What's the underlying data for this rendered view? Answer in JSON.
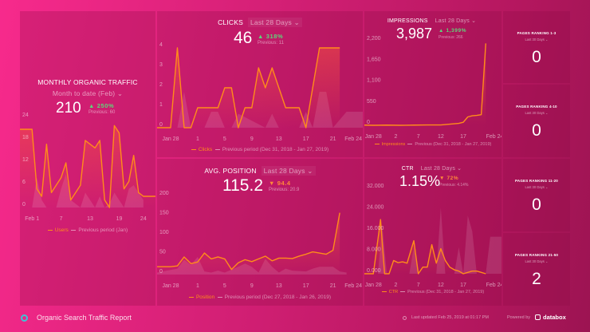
{
  "colors": {
    "accent": "#ff8c1a",
    "up": "#5fd67a",
    "down": "#ff8a3a",
    "logo": "#3fc3d6"
  },
  "traffic": {
    "title": "MONTHLY ORGANIC TRAFFIC",
    "range": "Month to date (Feb) ⌄",
    "value": "210",
    "change": "▲ 250%",
    "previous": "Previous: 60",
    "legend_main": "Users",
    "legend_prev": "Previous period (Jan)"
  },
  "clicks": {
    "title": "CLICKS",
    "range": "Last 28 Days ⌄",
    "value": "46",
    "change": "▲ 318%",
    "previous": "Previous: 11",
    "legend_main": "Clicks",
    "legend_prev": "Previous period (Dec 31, 2018 - Jan 27, 2019)"
  },
  "impressions": {
    "title": "IMPRESSIONS",
    "range": "Last 28 Days ⌄",
    "value": "3,987",
    "change": "▲ 1,399%",
    "previous": "Previous: 266",
    "legend_main": "Impressions",
    "legend_prev": "Previous (Dec 31, 2018 - Jan 27, 2019)"
  },
  "position": {
    "title": "AVG. POSITION",
    "range": "Last 28 Days ⌄",
    "value": "115.2",
    "change": "▼ 94.4",
    "previous": "Previous: 20.9",
    "legend_main": "Position",
    "legend_prev": "Previous period (Dec 27, 2018 - Jan 26, 2019)"
  },
  "ctr": {
    "title": "CTR",
    "range": "Last 28 Days ⌄",
    "value": "1.15%",
    "change": "▼ 72%",
    "previous": "Previous: 4.14%",
    "legend_main": "CTR",
    "legend_prev": "Previous (Dec 31, 2018 - Jan 27, 2019)"
  },
  "tiles": [
    {
      "title": "PAGES RANKING 1-3",
      "range": "Last 30 Days ⌄",
      "value": "0"
    },
    {
      "title": "PAGES RANKING 4-10",
      "range": "Last 30 Days ⌄",
      "value": "0"
    },
    {
      "title": "PAGES RANKING 11-20",
      "range": "Last 30 Days ⌄",
      "value": "0"
    },
    {
      "title": "PAGES RANKING 21-50",
      "range": "Last 30 Days ⌄",
      "value": "2"
    }
  ],
  "footer": {
    "report_title": "Organic Search Traffic Report",
    "last_updated": "Last updated Feb 25, 2019 at 01:17 PM",
    "powered_by": "Powered by",
    "brand": "databox"
  },
  "chart_data": [
    {
      "id": "traffic",
      "type": "line",
      "xlim": [
        -1.5,
        26.5
      ],
      "ylim": [
        0,
        24
      ],
      "yticks": [
        "0",
        "6",
        "12",
        "18",
        "24"
      ],
      "ytick_values": [
        0,
        6,
        12,
        18,
        24
      ],
      "xticks": [
        "Feb 1",
        "7",
        "13",
        "19",
        "24"
      ],
      "xtick_values": [
        1,
        7,
        13,
        19,
        24
      ],
      "series": [
        {
          "name": "Users",
          "x": [
            -1.5,
            0,
            1,
            2,
            3,
            4,
            5,
            6,
            7,
            8,
            9,
            10,
            11,
            12,
            13,
            14,
            15,
            16,
            17,
            18,
            19,
            20,
            21,
            22,
            23,
            24,
            25,
            26.5
          ],
          "values": [
            21,
            21,
            21,
            5,
            3,
            17,
            4,
            6,
            8,
            12,
            2,
            4,
            6,
            18,
            17,
            16,
            18,
            2,
            0,
            22,
            20,
            5,
            7,
            14,
            4,
            3,
            3,
            3
          ]
        },
        {
          "name": "Previous period (Jan)",
          "x": [
            1,
            2,
            3,
            4,
            6,
            7,
            8,
            9,
            11,
            12,
            14,
            15,
            16,
            17,
            18,
            20,
            21,
            22,
            23,
            24
          ],
          "values": [
            0,
            8,
            2,
            0,
            0,
            5,
            9,
            2,
            0,
            4,
            0,
            3,
            0,
            1,
            4,
            0,
            5,
            6,
            4,
            2
          ]
        }
      ]
    },
    {
      "id": "clicks",
      "type": "line",
      "xlim": [
        -2,
        28.4
      ],
      "ylim": [
        0,
        4
      ],
      "yticks": [
        "0",
        "1",
        "2",
        "3",
        "4"
      ],
      "ytick_values": [
        0,
        1,
        2,
        3,
        4
      ],
      "xticks": [
        "Jan 28",
        "1",
        "5",
        "9",
        "13",
        "17",
        "21",
        "Feb 24"
      ],
      "xtick_values": [
        0,
        4,
        8,
        12,
        16,
        20,
        24,
        27
      ],
      "series": [
        {
          "name": "Clicks",
          "x": [
            -2,
            0,
            1,
            2,
            3,
            4,
            5,
            6,
            7,
            8,
            9,
            10,
            11,
            12,
            13,
            14,
            15,
            16,
            17,
            18,
            19,
            20,
            21,
            22,
            23,
            24,
            25
          ],
          "values": [
            0,
            0,
            4,
            0,
            0,
            1,
            1,
            1,
            1,
            2,
            2,
            0,
            1,
            1,
            3,
            2,
            3,
            2,
            1,
            1,
            1,
            0,
            2,
            4,
            4,
            4,
            4
          ]
        },
        {
          "name": "Previous period",
          "x": [
            1,
            2,
            3,
            5,
            6,
            7,
            8,
            9,
            10,
            14,
            15,
            16,
            19,
            20,
            21,
            22,
            23,
            24,
            26,
            27,
            28.4
          ],
          "values": [
            0,
            1.8,
            0,
            0,
            0.8,
            0.8,
            0,
            0,
            0.7,
            0,
            0.7,
            0,
            0,
            0.8,
            0,
            1.8,
            1.8,
            0,
            0.8,
            0.8,
            0.8
          ]
        }
      ]
    },
    {
      "id": "impressions",
      "type": "line",
      "xlim": [
        -2,
        28.5
      ],
      "ylim": [
        0,
        2200
      ],
      "yticks": [
        "0",
        "550",
        "1,100",
        "1,650",
        "2,200"
      ],
      "ytick_values": [
        0,
        550,
        1100,
        1650,
        2200
      ],
      "xticks": [
        "Jan 28",
        "2",
        "7",
        "12",
        "17",
        "Feb 24"
      ],
      "xtick_values": [
        0,
        5,
        10,
        15,
        20,
        27
      ],
      "series": [
        {
          "name": "Impressions",
          "x": [
            -2,
            0,
            3,
            6,
            9,
            12,
            15,
            16,
            17,
            18,
            19,
            20,
            21,
            22,
            23,
            24,
            25
          ],
          "values": [
            5,
            0,
            5,
            0,
            5,
            10,
            10,
            20,
            30,
            40,
            50,
            80,
            220,
            250,
            260,
            280,
            2150
          ]
        },
        {
          "name": "Previous",
          "x": [
            -2,
            28.5
          ],
          "values": [
            0,
            0
          ]
        }
      ]
    },
    {
      "id": "position",
      "type": "line",
      "xlim": [
        -2,
        28.4
      ],
      "ylim": [
        0,
        200
      ],
      "yticks": [
        "0",
        "50",
        "100",
        "150",
        "200"
      ],
      "ytick_values": [
        0,
        50,
        100,
        150,
        200
      ],
      "xticks": [
        "Jan 28",
        "1",
        "5",
        "9",
        "13",
        "17",
        "21",
        "Feb 24"
      ],
      "xtick_values": [
        0,
        4,
        8,
        12,
        16,
        20,
        24,
        27
      ],
      "series": [
        {
          "name": "Position",
          "x": [
            -2,
            0,
            1,
            2,
            3,
            4,
            5,
            6,
            7,
            8,
            9,
            10,
            11,
            12,
            13,
            14,
            15,
            16,
            17,
            18,
            19,
            20,
            21,
            22,
            23,
            24,
            25
          ],
          "values": [
            20,
            20,
            22,
            45,
            28,
            32,
            55,
            40,
            45,
            40,
            13,
            30,
            38,
            33,
            40,
            47,
            35,
            42,
            42,
            41,
            47,
            52,
            58,
            55,
            52,
            62,
            158
          ]
        },
        {
          "name": "Previous period",
          "x": [
            -2,
            1,
            2,
            3,
            4,
            5,
            6,
            7,
            8,
            10,
            11,
            12,
            13,
            14,
            15,
            16,
            17,
            18,
            20,
            21,
            22,
            23,
            24,
            25,
            26
          ],
          "values": [
            5,
            15,
            38,
            25,
            45,
            8,
            5,
            10,
            5,
            20,
            28,
            20,
            5,
            40,
            20,
            5,
            15,
            10,
            8,
            15,
            20,
            20,
            20,
            8,
            5
          ]
        }
      ]
    },
    {
      "id": "ctr",
      "type": "line",
      "xlim": [
        -2,
        28.5
      ],
      "ylim": [
        0,
        32
      ],
      "yticks": [
        "0.000",
        "8.000",
        "16.000",
        "24.000",
        "32.000"
      ],
      "ytick_values": [
        0,
        8,
        16,
        24,
        32
      ],
      "xticks": [
        "Jan 28",
        "2",
        "7",
        "12",
        "17",
        "Feb 24"
      ],
      "xtick_values": [
        0,
        5,
        10,
        15,
        20,
        27
      ],
      "series": [
        {
          "name": "CTR",
          "x": [
            -2,
            0,
            1.6,
            2.5,
            3.5,
            4.5,
            5.5,
            6.5,
            7.5,
            9,
            10,
            11,
            12,
            13,
            14,
            15,
            16,
            17,
            18,
            19,
            20,
            21,
            22,
            23,
            24,
            25
          ],
          "values": [
            0,
            0,
            20.5,
            0,
            0,
            5,
            4.2,
            4.5,
            4,
            12.5,
            0,
            2.5,
            2.5,
            11,
            4,
            9.5,
            5,
            2.5,
            1.5,
            1,
            0,
            0.5,
            1,
            1,
            0.5,
            0
          ]
        },
        {
          "name": "Previous",
          "x": [
            1,
            2,
            3,
            8,
            9,
            10,
            14,
            15,
            16,
            18,
            19,
            20,
            21,
            22,
            23,
            25,
            26,
            28.5
          ],
          "values": [
            0,
            18,
            0,
            0,
            10,
            0,
            0,
            25,
            0,
            0,
            10,
            0,
            22,
            16,
            0,
            0,
            14,
            14
          ]
        }
      ]
    }
  ]
}
